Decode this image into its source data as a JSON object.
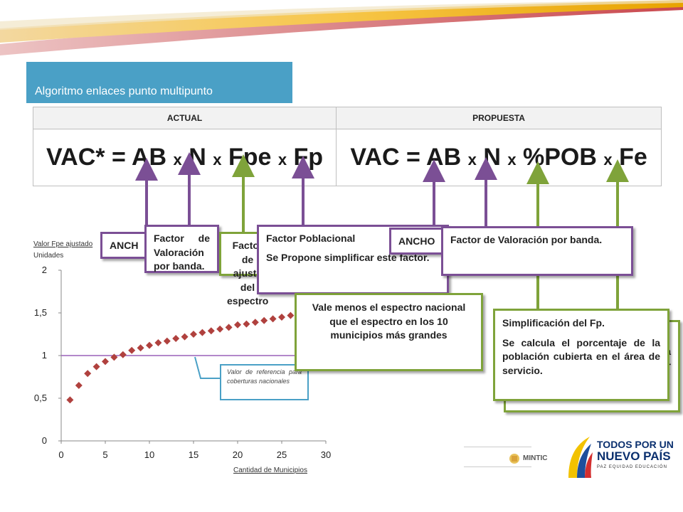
{
  "title": "Algoritmo enlaces punto multipunto",
  "table": {
    "headers": [
      "ACTUAL",
      "PROPUESTA"
    ],
    "actual_parts": [
      "VAC* = AB ",
      "x",
      " N ",
      "x",
      " Fpe ",
      "x",
      " Fp"
    ],
    "propuesta_parts": [
      "VAC = AB ",
      "x",
      " N ",
      "x",
      " %POB ",
      "x",
      " Fe"
    ]
  },
  "callouts": {
    "ancho_left": "ANCH",
    "factor_banda_left": "Factor de Valoración por banda.",
    "fac_green": "Factor de ajuste del espectro",
    "factor_poblacional_title": "Factor Poblacional",
    "factor_poblacional_text": "Se Propone simplificar este factor.",
    "ancho_right": "ANCHO",
    "factor_valoracion": "Factor de Valoración por banda.",
    "vale_menos": "Vale menos el espectro nacional que el espectro en los 10 municipios más grandes",
    "back_green_a": "a",
    "back_green_r": "r",
    "simplificacion_title": "Simplificación del Fp.",
    "simplificacion_text": "Se calcula el porcentaje de la población cubierta en el área de servicio."
  },
  "chart_data": {
    "type": "scatter",
    "ylabel": "Valor Fpe ajustado",
    "ylabel_units": "Unidades",
    "xlabel": "Cantidad de Municipios",
    "xlim": [
      0,
      30
    ],
    "ylim": [
      0,
      2
    ],
    "x_ticks": [
      "0",
      "5",
      "10",
      "15",
      "20",
      "25",
      "30"
    ],
    "y_ticks": [
      "0",
      "0,5",
      "1",
      "1,5",
      "2"
    ],
    "reference_line": 1.0,
    "reference_label": "Valor de referencia para coberturas nacionales",
    "marker_color": "#b0413e",
    "reference_color": "#9a60b8",
    "x": [
      1,
      2,
      3,
      4,
      5,
      6,
      7,
      8,
      9,
      10,
      11,
      12,
      13,
      14,
      15,
      16,
      17,
      18,
      19,
      20,
      21,
      22,
      23,
      24,
      25,
      26
    ],
    "y": [
      0.48,
      0.65,
      0.79,
      0.87,
      0.93,
      0.98,
      1.01,
      1.06,
      1.09,
      1.12,
      1.15,
      1.17,
      1.2,
      1.22,
      1.25,
      1.27,
      1.29,
      1.31,
      1.33,
      1.36,
      1.37,
      1.39,
      1.41,
      1.43,
      1.45,
      1.47
    ]
  },
  "logos": {
    "mintic": "MINTIC",
    "gov_line1": "TODOS POR UN",
    "gov_line2": "NUEVO PAÍS",
    "gov_line3": "PAZ  EQUIDAD  EDUCACIÓN"
  }
}
